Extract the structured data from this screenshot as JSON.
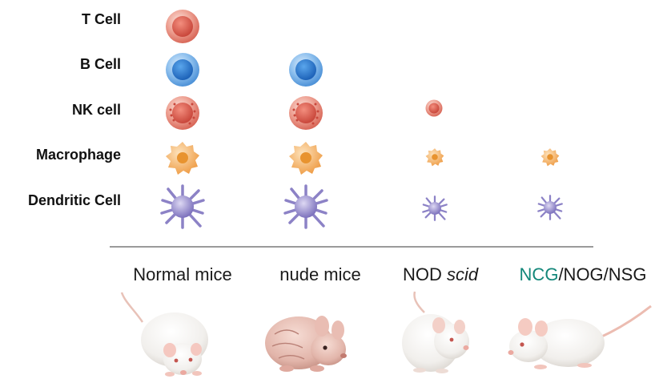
{
  "rows": [
    {
      "label": "T Cell",
      "cell": "t-cell"
    },
    {
      "label": "B Cell",
      "cell": "b-cell"
    },
    {
      "label": "NK cell",
      "cell": "nk-cell"
    },
    {
      "label": "Macrophage",
      "cell": "macrophage"
    },
    {
      "label": "Dendritic Cell",
      "cell": "dendritic-cell"
    }
  ],
  "columns": [
    {
      "label_part1": "Normal mice",
      "label_part2": "",
      "label_part3": "",
      "highlight_color": "#1a8a7a"
    },
    {
      "label_part1": "nude mice",
      "label_part2": "",
      "label_part3": ""
    },
    {
      "label_part1": "NOD ",
      "label_part2": "scid",
      "label_part3": ""
    },
    {
      "label_part1": "NCG",
      "label_part2": "",
      "label_part3": "/NOG/NSG"
    }
  ],
  "colors": {
    "t_cell": "#e07a6a",
    "b_cell": "#4b8fd6",
    "nk_cell": "#e77d63",
    "macrophage": "#f2b46a",
    "dendritic_cell": "#8c82c6",
    "ncg_highlight": "#13877a"
  }
}
